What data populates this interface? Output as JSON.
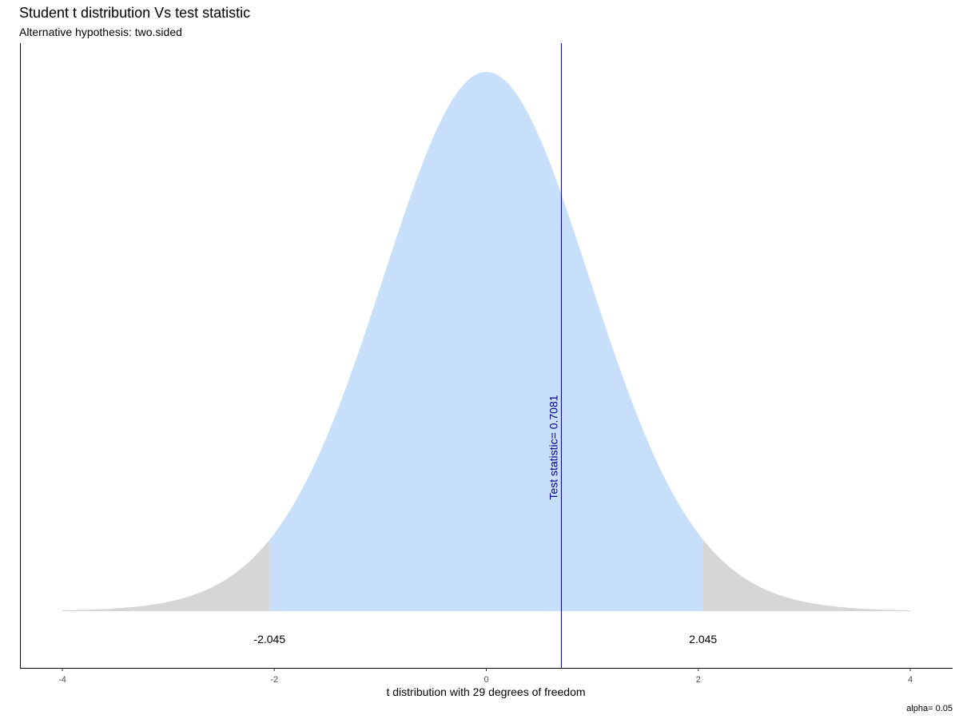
{
  "chart_data": {
    "type": "area",
    "title": "Student t distribution Vs test statistic",
    "subtitle": "Alternative hypothesis: two.sided",
    "xlabel": "t distribution with 29 degrees of freedom",
    "ylabel": "",
    "caption": "alpha= 0.05",
    "degrees_of_freedom": 29,
    "xlim": [
      -4,
      4
    ],
    "x_ticks": [
      -4,
      -2,
      0,
      2,
      4
    ],
    "x_tick_labels": [
      "-4",
      "-2",
      "0",
      "2",
      "4"
    ],
    "critical_values": [
      -2.045,
      2.045
    ],
    "critical_labels": [
      "-2.045",
      "2.045"
    ],
    "test_statistic": 0.7081,
    "test_statistic_label": "Test statistic= 0.7081",
    "grid": false,
    "colors": {
      "acceptance_region": "#c8dff9",
      "rejection_region": "#d6d6d6",
      "test_statistic_line": "#00008b",
      "axis": "#000000"
    }
  }
}
